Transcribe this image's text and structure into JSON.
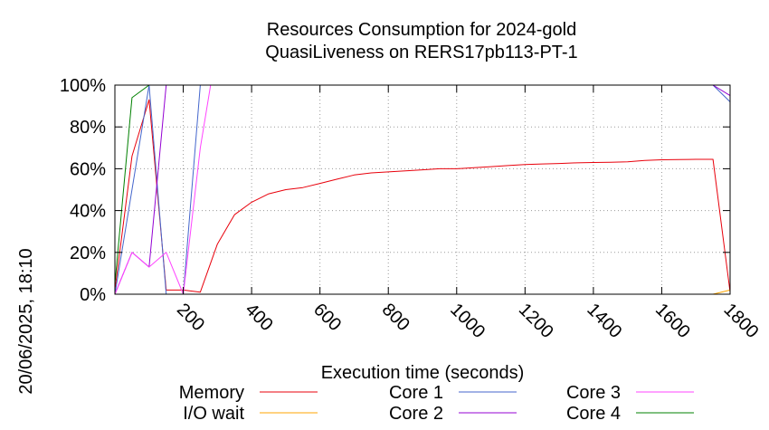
{
  "chart_data": {
    "type": "line",
    "title": "Resources Consumption for 2024-gold",
    "subtitle": "QuasiLiveness on RERS17pb113-PT-1",
    "xlabel": "Execution time (seconds)",
    "ylabel": "",
    "side_label": "20/06/2025, 18:10",
    "xlim": [
      0,
      1800
    ],
    "ylim": [
      0,
      100
    ],
    "x_ticks": [
      200,
      400,
      600,
      800,
      1000,
      1200,
      1400,
      1600,
      1800
    ],
    "y_ticks": [
      {
        "value": 0,
        "label": "0%"
      },
      {
        "value": 20,
        "label": "20%"
      },
      {
        "value": 40,
        "label": "40%"
      },
      {
        "value": 60,
        "label": "60%"
      },
      {
        "value": 80,
        "label": "80%"
      },
      {
        "value": 100,
        "label": "100%"
      }
    ],
    "grid": true,
    "legend_position": "bottom",
    "series": [
      {
        "name": "Memory",
        "color": "#e8000b",
        "points": [
          [
            0,
            2
          ],
          [
            50,
            66
          ],
          [
            100,
            93
          ],
          [
            150,
            2
          ],
          [
            200,
            2
          ],
          [
            250,
            1
          ],
          [
            300,
            24
          ],
          [
            350,
            38
          ],
          [
            400,
            44
          ],
          [
            450,
            48
          ],
          [
            500,
            50
          ],
          [
            550,
            51
          ],
          [
            600,
            53
          ],
          [
            650,
            55
          ],
          [
            700,
            57
          ],
          [
            750,
            58
          ],
          [
            800,
            58.5
          ],
          [
            850,
            59
          ],
          [
            900,
            59.5
          ],
          [
            950,
            60
          ],
          [
            1000,
            60
          ],
          [
            1050,
            60.5
          ],
          [
            1100,
            61
          ],
          [
            1150,
            61.5
          ],
          [
            1200,
            62
          ],
          [
            1250,
            62.3
          ],
          [
            1300,
            62.5
          ],
          [
            1350,
            62.8
          ],
          [
            1400,
            63
          ],
          [
            1450,
            63.1
          ],
          [
            1500,
            63.3
          ],
          [
            1550,
            64
          ],
          [
            1600,
            64.3
          ],
          [
            1650,
            64.4
          ],
          [
            1700,
            64.5
          ],
          [
            1750,
            64.5
          ],
          [
            1800,
            1
          ]
        ]
      },
      {
        "name": "I/O wait",
        "color": "#ffa500",
        "points": [
          [
            0,
            0
          ],
          [
            1750,
            0
          ],
          [
            1800,
            2
          ]
        ]
      },
      {
        "name": "Core 1",
        "color": "#4466cc",
        "points": [
          [
            0,
            0
          ],
          [
            100,
            100
          ],
          [
            150,
            0
          ],
          [
            200,
            0
          ],
          [
            250,
            100
          ],
          [
            1750,
            100
          ],
          [
            1800,
            92
          ]
        ]
      },
      {
        "name": "Core 2",
        "color": "#9400d3",
        "points": [
          [
            0,
            0
          ],
          [
            50,
            20
          ],
          [
            100,
            13
          ],
          [
            150,
            100
          ],
          [
            200,
            100
          ],
          [
            250,
            100
          ],
          [
            1750,
            100
          ],
          [
            1800,
            95
          ]
        ]
      },
      {
        "name": "Core 3",
        "color": "#ff44ff",
        "points": [
          [
            0,
            0
          ],
          [
            50,
            20
          ],
          [
            100,
            13
          ],
          [
            150,
            20
          ],
          [
            200,
            0
          ],
          [
            250,
            70
          ],
          [
            280,
            100
          ],
          [
            1800,
            100
          ]
        ]
      },
      {
        "name": "Core 4",
        "color": "#008000",
        "points": [
          [
            0,
            5
          ],
          [
            50,
            94
          ],
          [
            100,
            100
          ],
          [
            150,
            100
          ],
          [
            200,
            100
          ],
          [
            1800,
            100
          ]
        ]
      }
    ]
  }
}
